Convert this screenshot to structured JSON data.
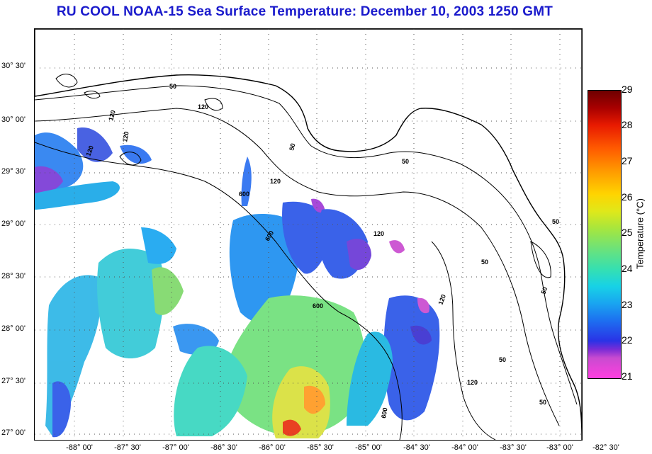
{
  "title": "RU COOL  NOAA-15  Sea Surface Temperature:  December 10, 2003 1250 GMT",
  "lat_labels": [
    "30° 30'",
    "30° 00'",
    "29° 30'",
    "29° 00'",
    "28° 30'",
    "28° 00'",
    "27° 30'",
    "27° 00'"
  ],
  "lon_labels": [
    "-88° 00'",
    "-87° 30'",
    "-87° 00'",
    "-86° 30'",
    "-86° 00'",
    "-85° 30'",
    "-85° 00'",
    "-84° 30'",
    "-84° 00'",
    "-83° 30'",
    "-83° 00'",
    "-82° 30'"
  ],
  "contour_labels": [
    "50",
    "120",
    "50",
    "120",
    "120",
    "50",
    "50",
    "120",
    "600",
    "600",
    "120",
    "600",
    "120",
    "50",
    "50",
    "120",
    "50",
    "600",
    "120",
    "50"
  ],
  "colorbar": {
    "label": "Temperature (°C)",
    "ticks": [
      "29",
      "28",
      "27",
      "26",
      "25",
      "24",
      "23",
      "22",
      "21"
    ],
    "min": 21,
    "max": 29
  },
  "colors": {
    "title": "#1a1acc",
    "land": "#ffffff",
    "no_data": "#ffffff"
  }
}
